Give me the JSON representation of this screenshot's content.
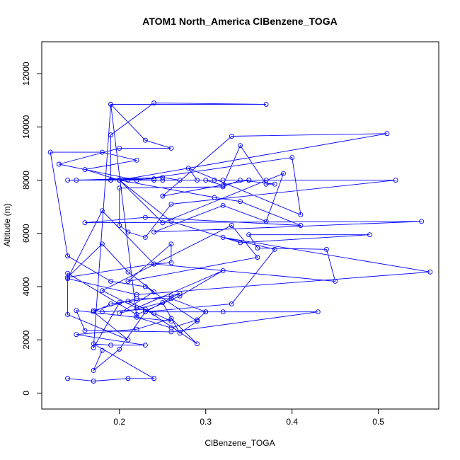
{
  "chart_data": {
    "type": "line",
    "title": "ATOM1 North_America ClBenzene_TOGA",
    "xlabel": "ClBenzene_TOGA",
    "ylabel": "Altitude (m)",
    "xlim": [
      0.11,
      0.57
    ],
    "ylim": [
      -600,
      13200
    ],
    "x_ticks": [
      0.2,
      0.3,
      0.4,
      0.5
    ],
    "x_tick_labels": [
      "0.2",
      "0.3",
      "0.4",
      "0.5"
    ],
    "y_ticks": [
      0,
      2000,
      4000,
      6000,
      8000,
      10000,
      12000
    ],
    "y_tick_labels": [
      "0",
      "2000",
      "4000",
      "6000",
      "8000",
      "10000",
      "12000"
    ],
    "grid": false,
    "marker": "open-circle",
    "color": "#0000ff",
    "series": [
      {
        "x": [
          0.14,
          0.17,
          0.21,
          0.24,
          0.17,
          0.19,
          0.23,
          0.15,
          0.22,
          0.26,
          0.29,
          0.23,
          0.18,
          0.17,
          0.22,
          0.26,
          0.3,
          0.32,
          0.43,
          0.26,
          0.16,
          0.15,
          0.26,
          0.24,
          0.21,
          0.19,
          0.17,
          0.21,
          0.14,
          0.14,
          0.22,
          0.27,
          0.32,
          0.22,
          0.18,
          0.33,
          0.36,
          0.21,
          0.26,
          0.26,
          0.24,
          0.14,
          0.18,
          0.21,
          0.24,
          0.2,
          0.25,
          0.27,
          0.29,
          0.23,
          0.19,
          0.14,
          0.12,
          0.18,
          0.22,
          0.16,
          0.2,
          0.21,
          0.25,
          0.35,
          0.31,
          0.24,
          0.19,
          0.19,
          0.24,
          0.37,
          0.19,
          0.23,
          0.26,
          0.2,
          0.13,
          0.22,
          0.4,
          0.41,
          0.28,
          0.29,
          0.32,
          0.37,
          0.35,
          0.25,
          0.33,
          0.51,
          0.2,
          0.19,
          0.15,
          0.25,
          0.27,
          0.3,
          0.32,
          0.34,
          0.37,
          0.38,
          0.34,
          0.32,
          0.2,
          0.2,
          0.21,
          0.23,
          0.26,
          0.52,
          0.14,
          0.24,
          0.2,
          0.31,
          0.34,
          0.41,
          0.23,
          0.16,
          0.55,
          0.24,
          0.32,
          0.37,
          0.39,
          0.25,
          0.2,
          0.26,
          0.34,
          0.49,
          0.35,
          0.36,
          0.44,
          0.45,
          0.24,
          0.18,
          0.14,
          0.22,
          0.56,
          0.32,
          0.38,
          0.33,
          0.23,
          0.3,
          0.29,
          0.26,
          0.22,
          0.19,
          0.17,
          0.2,
          0.26,
          0.27,
          0.23,
          0.2,
          0.17,
          0.18
        ],
        "y": [
          550,
          450,
          550,
          550,
          1850,
          1800,
          1800,
          2200,
          2400,
          2800,
          1850,
          3150,
          3050,
          3100,
          3550,
          3550,
          3050,
          3050,
          3050,
          2300,
          2350,
          3100,
          2700,
          3000,
          3450,
          3350,
          3050,
          2000,
          2950,
          4500,
          2950,
          3650,
          4600,
          3200,
          3850,
          6300,
          5100,
          4200,
          5600,
          4900,
          4850,
          4350,
          5600,
          4550,
          3800,
          3000,
          3400,
          2250,
          2700,
          4000,
          4200,
          5150,
          9050,
          9050,
          8750,
          8400,
          8000,
          8000,
          8000,
          8000,
          8000,
          8000,
          8000,
          9700,
          10900,
          10850,
          10850,
          9500,
          9200,
          9200,
          8600,
          8000,
          8850,
          6700,
          8450,
          8000,
          8000,
          8000,
          8000,
          7400,
          9650,
          9750,
          8000,
          8000,
          8000,
          8100,
          8000,
          8000,
          7800,
          9300,
          7850,
          7850,
          8000,
          7750,
          7700,
          6300,
          6050,
          5850,
          7100,
          8000,
          8000,
          8050,
          8000,
          7350,
          7200,
          6300,
          6600,
          6400,
          6450,
          6050,
          7050,
          6450,
          8250,
          6400,
          8000,
          6450,
          5650,
          5950,
          5950,
          5450,
          5400,
          4200,
          4850,
          6850,
          4300,
          3700,
          4550,
          5850,
          5400,
          3350,
          3050,
          3050,
          2750,
          2450,
          2850,
          10850,
          1700,
          3400,
          3650,
          3750,
          3050,
          1650,
          850,
          1600
        ]
      }
    ]
  }
}
